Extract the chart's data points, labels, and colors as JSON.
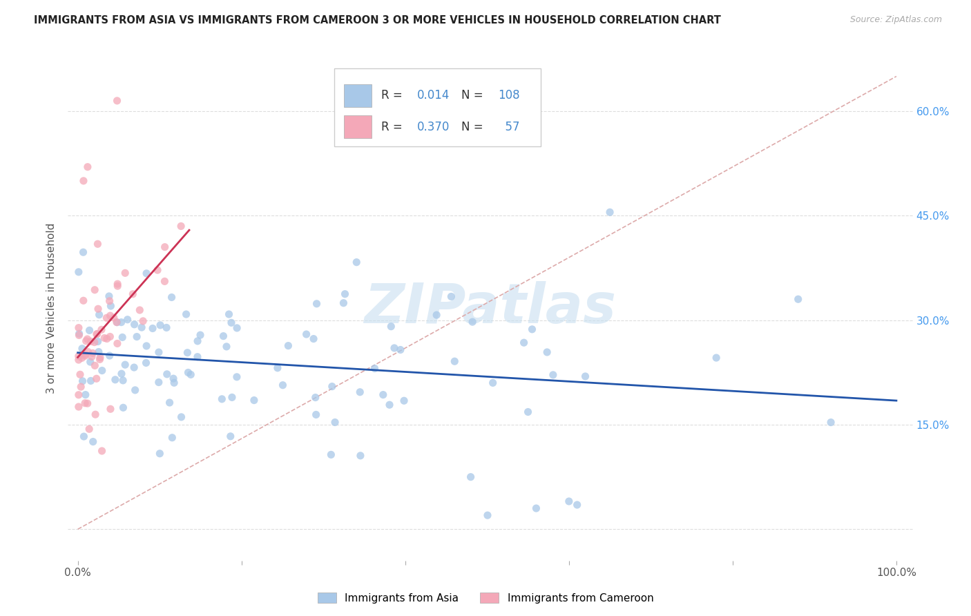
{
  "title": "IMMIGRANTS FROM ASIA VS IMMIGRANTS FROM CAMEROON 3 OR MORE VEHICLES IN HOUSEHOLD CORRELATION CHART",
  "source": "Source: ZipAtlas.com",
  "ylabel": "3 or more Vehicles in Household",
  "legend_r_asia": "0.014",
  "legend_n_asia": "108",
  "legend_r_cam": "0.370",
  "legend_n_cam": "57",
  "color_asia": "#a8c8e8",
  "color_cam": "#f4a8b8",
  "trendline_asia_color": "#2255aa",
  "trendline_cam_color": "#cc3355",
  "diag_color": "#ddaaaa",
  "diag_style": "--",
  "background_color": "#ffffff",
  "watermark": "ZIPatlas",
  "watermark_color": "#c8dff0",
  "legend_blue": "#4488cc",
  "legend_black": "#333333",
  "right_axis_color": "#4499ee",
  "grid_color": "#dddddd",
  "ylabel_color": "#555555",
  "source_color": "#aaaaaa"
}
